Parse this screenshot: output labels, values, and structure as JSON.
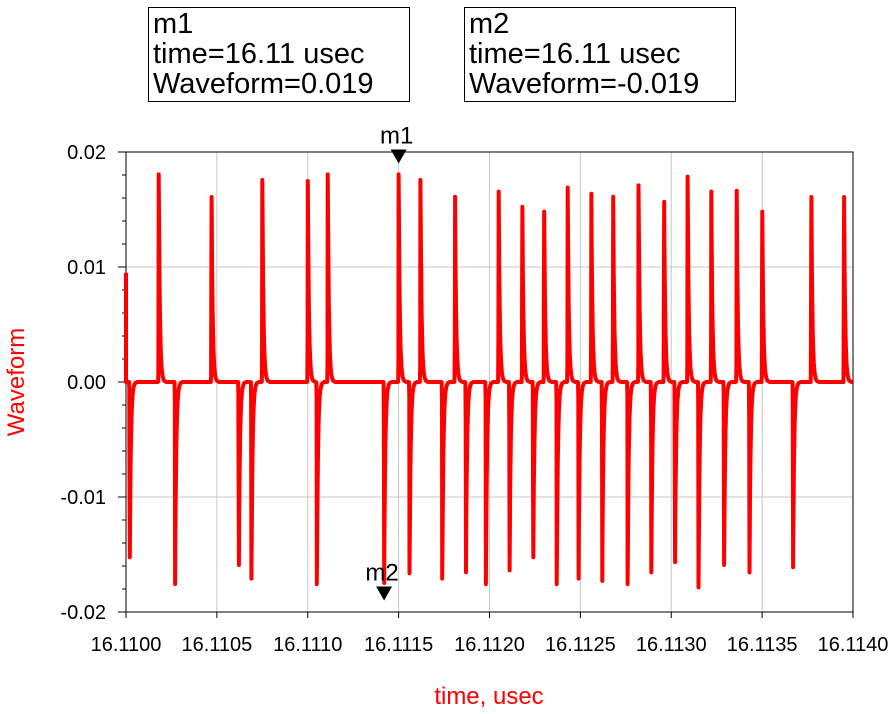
{
  "markers": [
    {
      "id": "m1",
      "name": "m1",
      "time_text": "time=16.11 usec",
      "value_text": "Waveform=0.019",
      "x": 16.1115,
      "y": 0.019
    },
    {
      "id": "m2",
      "name": "m2",
      "time_text": "time=16.11 usec",
      "value_text": "Waveform=-0.019",
      "x": 16.11142,
      "y": -0.019
    }
  ],
  "chart_data": {
    "type": "line",
    "xlabel": "time, usec",
    "ylabel": "Waveform",
    "xlim": [
      16.11,
      16.114
    ],
    "ylim": [
      -0.02,
      0.02
    ],
    "x_ticks": [
      "16.1100",
      "16.1105",
      "16.1110",
      "16.1115",
      "16.1120",
      "16.1125",
      "16.1130",
      "16.1135",
      "16.1140"
    ],
    "y_ticks": [
      "0.02",
      "0.01",
      "0.00",
      "-0.01",
      "-0.02"
    ],
    "y_tick_values": [
      0.02,
      0.01,
      0.0,
      -0.01,
      -0.02
    ],
    "grid": true,
    "series_color": "#ff0000",
    "series": [
      {
        "events": [
          {
            "t": 16.11002,
            "a": -0.018
          },
          {
            "t": 16.11018,
            "a": 0.019
          },
          {
            "t": 16.11027,
            "a": -0.0185
          },
          {
            "t": 16.11047,
            "a": 0.019
          },
          {
            "t": 16.11062,
            "a": -0.0188
          },
          {
            "t": 16.11069,
            "a": -0.018
          },
          {
            "t": 16.11075,
            "a": 0.0185
          },
          {
            "t": 16.111,
            "a": 0.019
          },
          {
            "t": 16.11105,
            "a": -0.0185
          },
          {
            "t": 16.11111,
            "a": 0.019
          },
          {
            "t": 16.11142,
            "a": -0.019
          },
          {
            "t": 16.1115,
            "a": 0.019
          },
          {
            "t": 16.11156,
            "a": -0.0175
          },
          {
            "t": 16.11162,
            "a": 0.0185
          },
          {
            "t": 16.11174,
            "a": -0.018
          },
          {
            "t": 16.11181,
            "a": 0.0175
          },
          {
            "t": 16.11187,
            "a": -0.018
          },
          {
            "t": 16.11198,
            "a": -0.0185
          },
          {
            "t": 16.11205,
            "a": 0.018
          },
          {
            "t": 16.11211,
            "a": -0.0178
          },
          {
            "t": 16.11218,
            "a": 0.018
          },
          {
            "t": 16.11224,
            "a": -0.018
          },
          {
            "t": 16.1123,
            "a": 0.0175
          },
          {
            "t": 16.11237,
            "a": -0.0185
          },
          {
            "t": 16.11243,
            "a": 0.0178
          },
          {
            "t": 16.11249,
            "a": -0.018
          },
          {
            "t": 16.11256,
            "a": 0.0178
          },
          {
            "t": 16.11262,
            "a": -0.0188
          },
          {
            "t": 16.11268,
            "a": 0.0175
          },
          {
            "t": 16.11276,
            "a": -0.0185
          },
          {
            "t": 16.11282,
            "a": 0.018
          },
          {
            "t": 16.11289,
            "a": -0.018
          },
          {
            "t": 16.11296,
            "a": 0.0185
          },
          {
            "t": 16.11302,
            "a": -0.0185
          },
          {
            "t": 16.11309,
            "a": 0.0188
          },
          {
            "t": 16.11315,
            "a": -0.0188
          },
          {
            "t": 16.11322,
            "a": 0.018
          },
          {
            "t": 16.11329,
            "a": -0.0188
          },
          {
            "t": 16.11336,
            "a": 0.0175
          },
          {
            "t": 16.11343,
            "a": -0.018
          },
          {
            "t": 16.1135,
            "a": 0.0175
          },
          {
            "t": 16.11367,
            "a": -0.0175
          },
          {
            "t": 16.11377,
            "a": 0.019
          },
          {
            "t": 16.11395,
            "a": 0.019
          }
        ]
      }
    ]
  }
}
